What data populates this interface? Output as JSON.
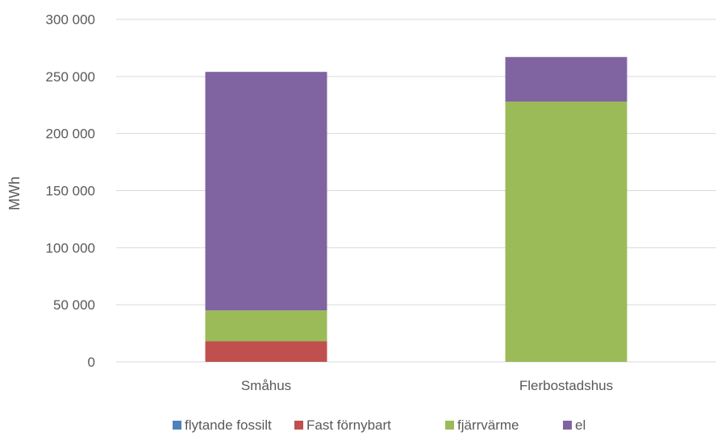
{
  "chart_data": {
    "type": "bar",
    "stacked": true,
    "title": "",
    "xlabel": "",
    "ylabel": "MWh",
    "ylim": [
      0,
      300000
    ],
    "yticks": [
      0,
      50000,
      100000,
      150000,
      200000,
      250000,
      300000
    ],
    "ytick_labels": [
      "0",
      "50 000",
      "100 000",
      "150 000",
      "200 000",
      "250 000",
      "300 000"
    ],
    "grid": true,
    "legend_position": "bottom",
    "categories": [
      "Småhus",
      "Flerbostadshus"
    ],
    "series": [
      {
        "name": "flytande fossilt",
        "color": "#4f81bd",
        "values": [
          0,
          0
        ]
      },
      {
        "name": "Fast förnybart",
        "color": "#c0504d",
        "values": [
          18000,
          0
        ]
      },
      {
        "name": "fjärrvärme",
        "color": "#9bbb59",
        "values": [
          27000,
          228000
        ]
      },
      {
        "name": "el",
        "color": "#8064a2",
        "values": [
          209000,
          39000
        ]
      }
    ]
  }
}
